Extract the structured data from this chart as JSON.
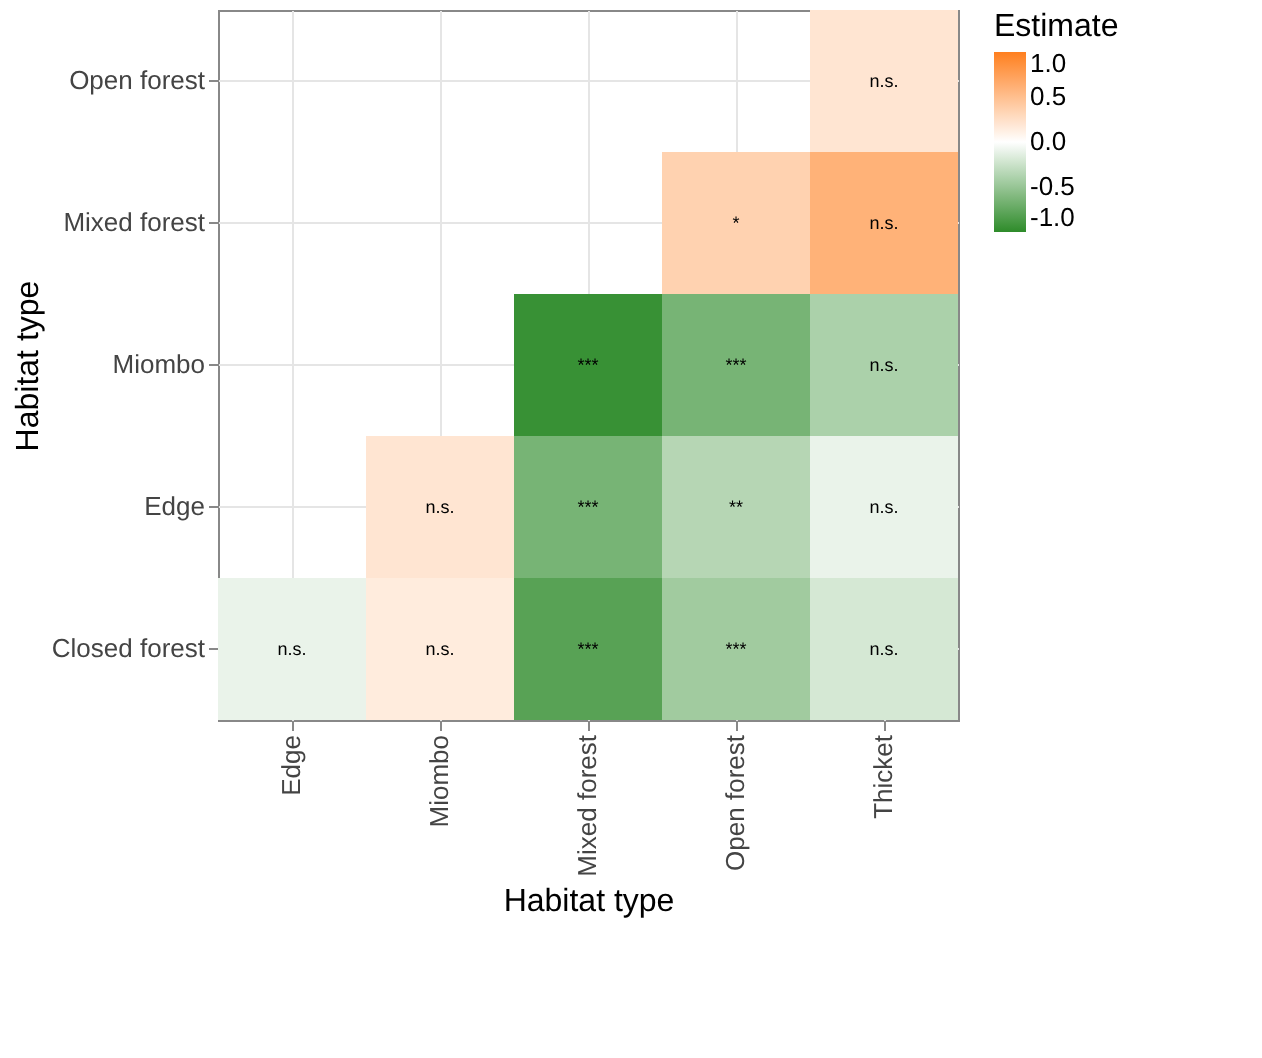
{
  "chart_data": {
    "type": "heatmap",
    "xlabel": "Habitat type",
    "ylabel": "Habitat type",
    "legend_title": "Estimate",
    "categories": [
      "Edge",
      "Miombo",
      "Mixed forest",
      "Open forest",
      "Thicket"
    ],
    "y_categories": [
      "Open forest",
      "Mixed forest",
      "Miombo",
      "Edge",
      "Closed forest"
    ],
    "cells": [
      [
        null,
        null,
        null,
        null,
        0.2
      ],
      [
        null,
        null,
        null,
        0.35,
        0.6
      ],
      [
        null,
        null,
        -0.95,
        -0.65,
        -0.4
      ],
      [
        null,
        0.2,
        -0.65,
        -0.35,
        -0.1
      ],
      [
        -0.1,
        0.15,
        -0.8,
        -0.45,
        -0.2
      ]
    ],
    "cell_labels": [
      [
        null,
        null,
        null,
        null,
        "n.s."
      ],
      [
        null,
        null,
        null,
        "*",
        "n.s."
      ],
      [
        null,
        null,
        "***",
        "***",
        "n.s."
      ],
      [
        null,
        "n.s.",
        "***",
        "**",
        "n.s."
      ],
      [
        "n.s.",
        "n.s.",
        "***",
        "***",
        "n.s."
      ]
    ],
    "clim": [
      -1,
      1
    ],
    "cticks": [
      {
        "value": 1,
        "label": "1.0"
      },
      {
        "value": 0.5,
        "label": "0.5"
      },
      {
        "value": 0,
        "label": "0.0"
      },
      {
        "value": -0.5,
        "label": "-0.5"
      },
      {
        "value": -1,
        "label": "-1.0"
      }
    ],
    "colors": [
      "#2e8b2a",
      "#ffffff",
      "#ff7f1e"
    ],
    "grid": true
  }
}
